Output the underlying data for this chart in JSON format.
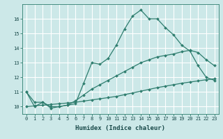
{
  "xlabel": "Humidex (Indice chaleur)",
  "bg_color": "#cce8e8",
  "grid_color": "#ffffff",
  "line_color": "#2e7d6e",
  "line1_y": [
    11.0,
    10.0,
    10.3,
    9.9,
    10.0,
    10.1,
    10.2,
    11.6,
    13.0,
    12.9,
    13.3,
    14.2,
    15.3,
    16.2,
    16.6,
    16.0,
    16.0,
    15.4,
    14.9,
    14.2,
    13.8,
    12.8,
    12.0,
    11.8
  ],
  "line2_y": [
    11.0,
    10.3,
    10.3,
    10.0,
    10.0,
    10.1,
    10.4,
    10.8,
    11.2,
    11.5,
    11.8,
    12.1,
    12.4,
    12.7,
    13.0,
    13.2,
    13.4,
    13.5,
    13.6,
    13.75,
    13.85,
    13.7,
    13.2,
    12.8
  ],
  "line3_y": [
    10.0,
    10.05,
    10.1,
    10.15,
    10.2,
    10.25,
    10.3,
    10.38,
    10.46,
    10.54,
    10.62,
    10.7,
    10.82,
    10.94,
    11.06,
    11.18,
    11.3,
    11.4,
    11.5,
    11.6,
    11.68,
    11.76,
    11.84,
    11.9
  ],
  "xlim": [
    -0.5,
    23.5
  ],
  "ylim": [
    9.5,
    17.0
  ],
  "yticks": [
    10,
    11,
    12,
    13,
    14,
    15,
    16
  ],
  "xticks": [
    0,
    1,
    2,
    3,
    4,
    5,
    6,
    7,
    8,
    9,
    10,
    11,
    12,
    13,
    14,
    15,
    16,
    17,
    18,
    19,
    20,
    21,
    22,
    23
  ],
  "fontsize_xlabel": 6.5,
  "fontsize_tick": 5.0,
  "marker": "D",
  "markersize": 2.0,
  "linewidth": 0.9
}
